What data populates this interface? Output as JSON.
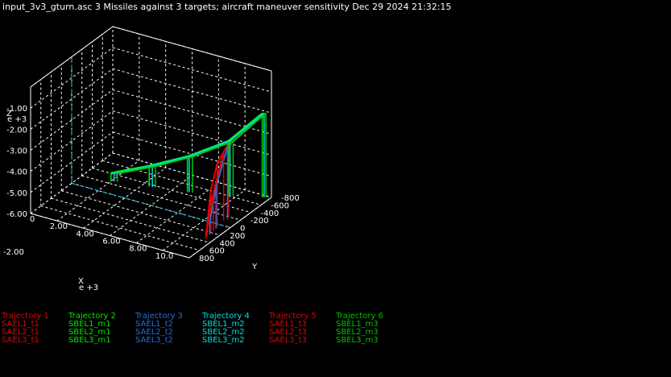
{
  "title": "input_3v3_gturn.asc 3 Missiles against 3 targets; aircraft maneuver sensitivity Dec 29 2024 21:32:15",
  "chart_data": {
    "type": "line",
    "projection": "3d-box",
    "grid": true,
    "axes": {
      "x": {
        "label": "X",
        "scale_label": "e +3",
        "ticks": [
          "0",
          "2.00",
          "4.00",
          "6.00",
          "8.00",
          "10.0"
        ],
        "range": [
          0,
          12
        ]
      },
      "y": {
        "label": "Y",
        "ticks": [
          "800",
          "600",
          "400",
          "200",
          "0",
          "-200",
          "-400",
          "-600",
          "-800"
        ],
        "range": [
          800,
          -800
        ]
      },
      "z": {
        "label": "Z",
        "scale_label": "e +3",
        "ticks": [
          "-1.00",
          "-2.00",
          "-3.00",
          "-4.00",
          "-5.00",
          "-6.00"
        ],
        "range": [
          -6,
          0
        ]
      }
    },
    "series": [
      {
        "name": "Trajectory 1",
        "color": "#e80000",
        "members": [
          "SAEL1_t1",
          "SAEL2_t1",
          "SAEL3_t1"
        ],
        "x": [
          11.4,
          11.3,
          11.2,
          11.1
        ],
        "y": [
          300,
          200,
          50,
          -200
        ],
        "z": [
          -5.5,
          -4.0,
          -3.0,
          -2.5
        ]
      },
      {
        "name": "Trajectory 2",
        "color": "#00e800",
        "members": [
          "SBEL1_m1",
          "SBEL2_m1",
          "SBEL3_m1"
        ],
        "x": [
          2.0,
          4.5,
          7.0,
          9.5,
          11.5
        ],
        "y": [
          -250,
          -350,
          -450,
          -600,
          -750
        ],
        "z": [
          -5.6,
          -5.0,
          -4.3,
          -3.4,
          -2.0
        ]
      },
      {
        "name": "Trajectory 3",
        "color": "#1e70e0",
        "members": [
          "SAEL1_t2",
          "SAEL2_t2",
          "SAEL3_t2"
        ],
        "x": [
          11.4,
          11.3,
          11.2
        ],
        "y": [
          250,
          100,
          -150
        ],
        "z": [
          -5.5,
          -4.0,
          -2.6
        ]
      },
      {
        "name": "Trajectory 4",
        "color": "#00e0e0",
        "members": [
          "SBEL1_m2",
          "SBEL2_m2",
          "SBEL3_m2"
        ],
        "x": [
          2.2,
          4.7,
          7.1,
          9.6,
          11.6
        ],
        "y": [
          -260,
          -360,
          -460,
          -610,
          -760
        ],
        "z": [
          -5.6,
          -5.0,
          -4.3,
          -3.4,
          -2.0
        ]
      },
      {
        "name": "Trajectory 5",
        "color": "#e80000",
        "members": [
          "SAEL1_t3",
          "SAEL2_t3",
          "SAEL3_t3"
        ],
        "x": [
          11.5,
          11.3,
          11.1
        ],
        "y": [
          350,
          150,
          -100
        ],
        "z": [
          -5.8,
          -4.2,
          -2.8
        ]
      },
      {
        "name": "Trajectory 6",
        "color": "#00c800",
        "members": [
          "SBEL1_m3",
          "SBEL2_m3",
          "SBEL3_m3"
        ],
        "x": [
          2.4,
          4.9,
          7.3,
          9.8,
          11.7
        ],
        "y": [
          -270,
          -370,
          -470,
          -620,
          -770
        ],
        "z": [
          -5.6,
          -5.0,
          -4.3,
          -3.4,
          -2.0
        ]
      }
    ],
    "legend": {
      "placement": "bottom",
      "columns": [
        {
          "header": "Trajectory 1",
          "items": [
            "SAEL1_t1",
            "SAEL2_t1",
            "SAEL3_t1"
          ],
          "color": "#e80000"
        },
        {
          "header": "Trajectory 2",
          "items": [
            "SBEL1_m1",
            "SBEL2_m1",
            "SBEL3_m1"
          ],
          "color": "#00e800"
        },
        {
          "header": "Trajectory 3",
          "items": [
            "SAEL1_t2",
            "SAEL2_t2",
            "SAEL3_t2"
          ],
          "color": "#1e70e0"
        },
        {
          "header": "Trajectory 4",
          "items": [
            "SBEL1_m2",
            "SBEL2_m2",
            "SBEL3_m2"
          ],
          "color": "#00e0e0"
        },
        {
          "header": "Trajectory 5",
          "items": [
            "SAEL1_t3",
            "SAEL2_t3",
            "SAEL3_t3"
          ],
          "color": "#e80000"
        },
        {
          "header": "Trajectory 6",
          "items": [
            "SBEL1_m3",
            "SBEL2_m3",
            "SBEL3_m3"
          ],
          "color": "#00c800"
        }
      ]
    }
  }
}
